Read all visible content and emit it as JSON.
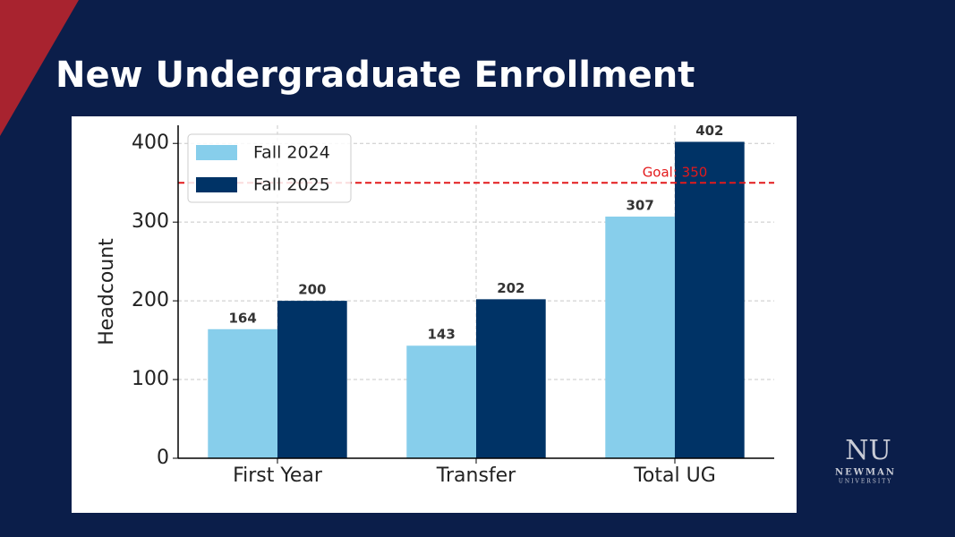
{
  "slide": {
    "title": "New Undergraduate Enrollment",
    "logo": {
      "monogram": "NU",
      "name": "NEWMAN",
      "subtitle": "UNIVERSITY"
    }
  },
  "chart_data": {
    "type": "bar",
    "categories": [
      "First Year",
      "Transfer",
      "Total UG"
    ],
    "series": [
      {
        "name": "Fall 2024",
        "color": "#87ceeb",
        "values": [
          164,
          143,
          307
        ]
      },
      {
        "name": "Fall 2025",
        "color": "#003366",
        "values": [
          200,
          202,
          402
        ]
      }
    ],
    "ylabel": "Headcount",
    "ylim": [
      0,
      423
    ],
    "yticks": [
      0,
      100,
      200,
      300,
      400
    ],
    "grid": true,
    "legend": "upper left",
    "reference_line": {
      "value": 350,
      "label": "Goal: 350",
      "color": "#e31a1c"
    }
  }
}
